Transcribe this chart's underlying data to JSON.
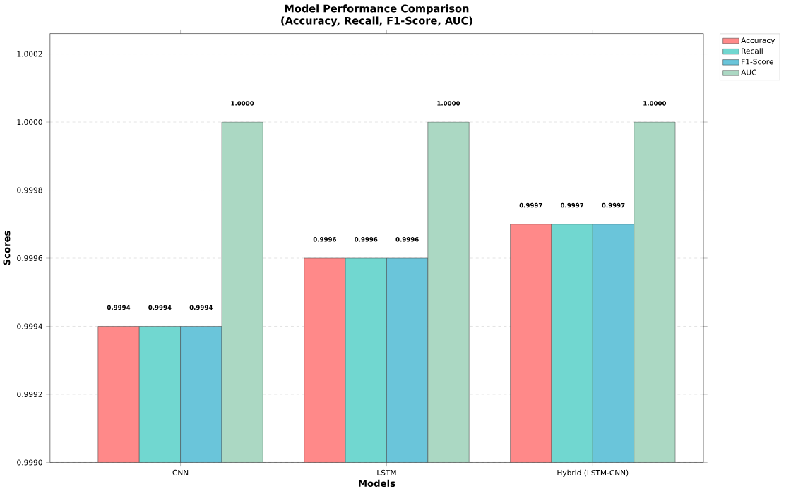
{
  "chart_data": {
    "type": "bar",
    "title": "Model Performance Comparison",
    "subtitle": "(Accuracy, Recall, F1-Score, AUC)",
    "xlabel": "Models",
    "ylabel": "Scores",
    "categories": [
      "CNN",
      "LSTM",
      "Hybrid (LSTM-CNN)"
    ],
    "series": [
      {
        "name": "Accuracy",
        "color": "#ff8989",
        "values": [
          0.9994,
          0.9996,
          0.9997
        ],
        "value_labels": [
          "0.9994",
          "0.9996",
          "0.9997"
        ]
      },
      {
        "name": "Recall",
        "color": "#71d7d0",
        "values": [
          0.9994,
          0.9996,
          0.9997
        ],
        "value_labels": [
          "0.9994",
          "0.9996",
          "0.9997"
        ]
      },
      {
        "name": "F1-Score",
        "color": "#6ac5da",
        "values": [
          0.9994,
          0.9996,
          0.9997
        ],
        "value_labels": [
          "0.9994",
          "0.9996",
          "0.9997"
        ]
      },
      {
        "name": "AUC",
        "color": "#abd8c3",
        "values": [
          1.0,
          1.0,
          1.0
        ],
        "value_labels": [
          "1.0000",
          "1.0000",
          "1.0000"
        ]
      }
    ],
    "ylim": [
      0.999,
      1.00026
    ],
    "yticks": [
      {
        "value": 0.999,
        "label": "0.9990"
      },
      {
        "value": 0.9992,
        "label": "0.9992"
      },
      {
        "value": 0.9994,
        "label": "0.9994"
      },
      {
        "value": 0.9996,
        "label": "0.9996"
      },
      {
        "value": 0.9998,
        "label": "0.9998"
      },
      {
        "value": 1.0,
        "label": "1.0000"
      },
      {
        "value": 1.0002,
        "label": "1.0002"
      }
    ],
    "grid": "y",
    "legend": "top right"
  }
}
